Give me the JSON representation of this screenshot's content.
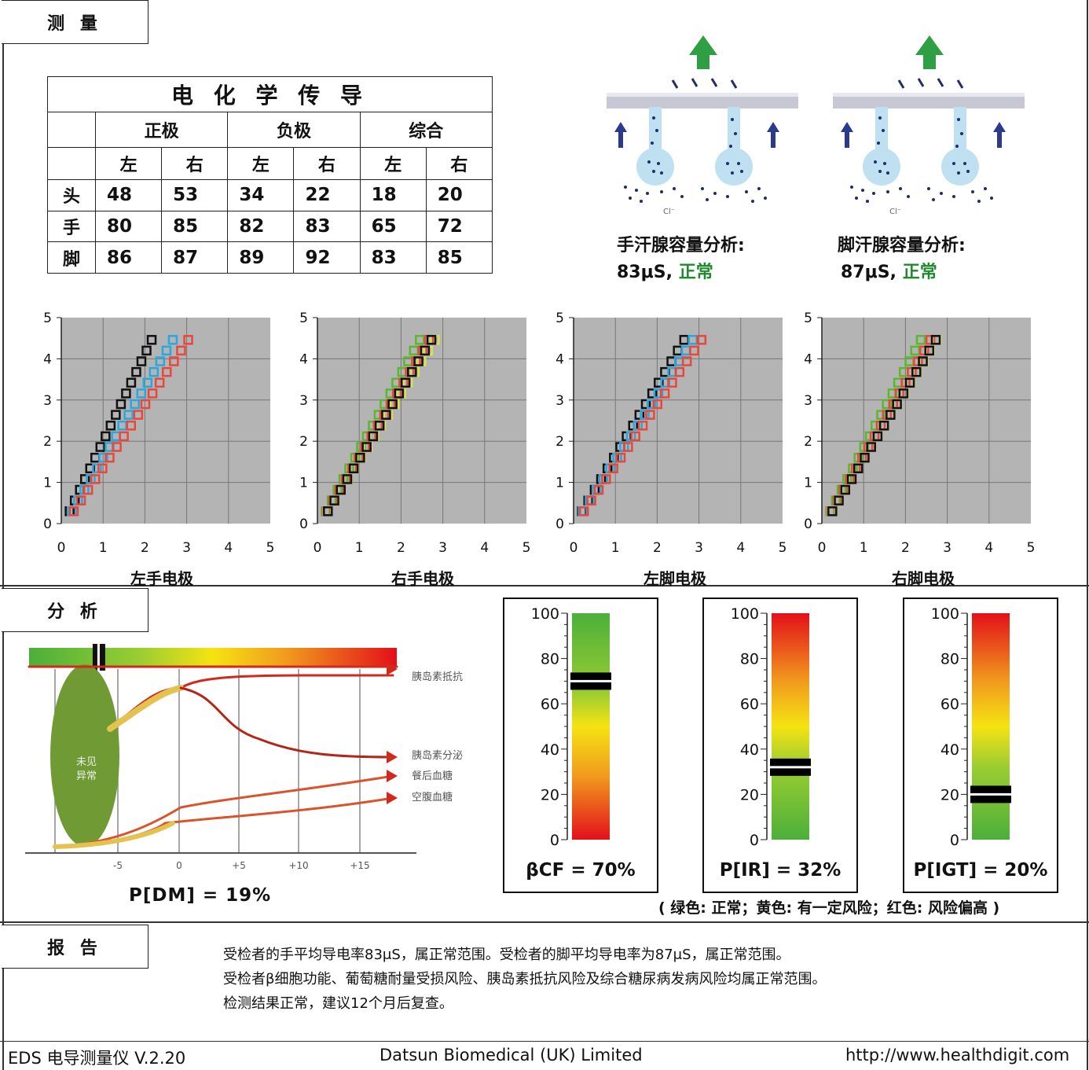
{
  "sections": {
    "measure_title": "测 量",
    "analysis_title": "分 析",
    "report_title": "报 告"
  },
  "table": {
    "title": "电 化 学 传 导",
    "groups": [
      "正极",
      "负极",
      "综合"
    ],
    "sides": [
      "左",
      "右",
      "左",
      "右",
      "左",
      "右"
    ],
    "rows": [
      {
        "label": "头",
        "values": [
          "48",
          "53",
          "34",
          "22",
          "18",
          "20"
        ]
      },
      {
        "label": "手",
        "values": [
          "80",
          "85",
          "82",
          "83",
          "65",
          "72"
        ]
      },
      {
        "label": "脚",
        "values": [
          "86",
          "87",
          "89",
          "92",
          "83",
          "85"
        ]
      }
    ]
  },
  "glands": {
    "hand": {
      "label": "手汗腺容量分析:",
      "value": "83μS,",
      "status": "正常"
    },
    "foot": {
      "label": "脚汗腺容量分析:",
      "value": "87μS,",
      "status": "正常"
    },
    "diagram_ion_label": "Cl⁻",
    "colors": {
      "ok": "#1d8a2c"
    }
  },
  "chart_data": [
    {
      "type": "scatter",
      "title": "左手电极",
      "xlim": [
        0,
        5
      ],
      "ylim": [
        0,
        5
      ],
      "ticks": [
        "0",
        "1",
        "2",
        "3",
        "4",
        "5"
      ],
      "grid": true,
      "series": [
        {
          "color": "#111111",
          "slope": 2.12,
          "x0": 0.2
        },
        {
          "color": "#29a8e0",
          "slope": 1.72,
          "x0": 0.25
        },
        {
          "color": "#e8483c",
          "slope": 1.52,
          "x0": 0.3
        }
      ]
    },
    {
      "type": "scatter",
      "title": "右手电极",
      "xlim": [
        0,
        5
      ],
      "ylim": [
        0,
        5
      ],
      "ticks": [
        "0",
        "1",
        "2",
        "3",
        "4",
        "5"
      ],
      "grid": true,
      "series": [
        {
          "color": "#5ab82e",
          "slope": 1.85,
          "x0": 0.2
        },
        {
          "color": "#e8483c",
          "slope": 1.7,
          "x0": 0.22
        },
        {
          "color": "#d9e24a",
          "slope": 1.62,
          "x0": 0.24
        },
        {
          "color": "#111111",
          "slope": 1.68,
          "x0": 0.25
        }
      ]
    },
    {
      "type": "scatter",
      "title": "左脚电极",
      "xlim": [
        0,
        5
      ],
      "ylim": [
        0,
        5
      ],
      "ticks": [
        "0",
        "1",
        "2",
        "3",
        "4",
        "5"
      ],
      "grid": true,
      "series": [
        {
          "color": "#111111",
          "slope": 1.7,
          "x0": 0.2
        },
        {
          "color": "#29a8e0",
          "slope": 1.58,
          "x0": 0.22
        },
        {
          "color": "#e8483c",
          "slope": 1.48,
          "x0": 0.25
        }
      ]
    },
    {
      "type": "scatter",
      "title": "右脚电极",
      "xlim": [
        0,
        5
      ],
      "ylim": [
        0,
        5
      ],
      "ticks": [
        "0",
        "1",
        "2",
        "3",
        "4",
        "5"
      ],
      "grid": true,
      "series": [
        {
          "color": "#5ab82e",
          "slope": 1.92,
          "x0": 0.2
        },
        {
          "color": "#e8483c",
          "slope": 1.75,
          "x0": 0.22
        },
        {
          "color": "#d9e24a",
          "slope": 1.66,
          "x0": 0.24
        },
        {
          "color": "#111111",
          "slope": 1.68,
          "x0": 0.25
        }
      ]
    }
  ],
  "analysis": {
    "pdm_label": "P[DM]  =  19%",
    "pdm_value": 0.19,
    "curve_labels": [
      "胰岛素抵抗",
      "胰岛素分泌",
      "餐后血糖",
      "空腹血糖"
    ],
    "ellipse_text": [
      "未见",
      "异常"
    ],
    "x_ticks": [
      "-5",
      "0",
      "+5",
      "+10",
      "+15"
    ],
    "gauges": [
      {
        "label": "βCF  =  70%",
        "value": 70,
        "scale": "green-top"
      },
      {
        "label": "P[IR]  =  32%",
        "value": 32,
        "scale": "red-top"
      },
      {
        "label": "P[IGT]  =  20%",
        "value": 20,
        "scale": "red-top"
      }
    ],
    "gauge_ticks": [
      "0",
      "20",
      "40",
      "60",
      "80",
      "100"
    ],
    "legend_note": "( 绿色: 正常；黄色: 有一定风险；红色: 风险偏高 )"
  },
  "report": {
    "lines": [
      "受检者的手平均导电率83μS，属正常范围。受检者的脚平均导电率为87μS，属正常范围。",
      "受检者β细胞功能、葡萄糖耐量受损风险、胰岛素抵抗风险及综合糖尿病发病风险均属正常范围。",
      "检测结果正常，建议12个月后复查。"
    ]
  },
  "footer": {
    "left": "EDS 电导测量仪 V.2.20",
    "center": "Datsun Biomedical (UK) Limited",
    "right": "http://www.healthdigit.com"
  }
}
